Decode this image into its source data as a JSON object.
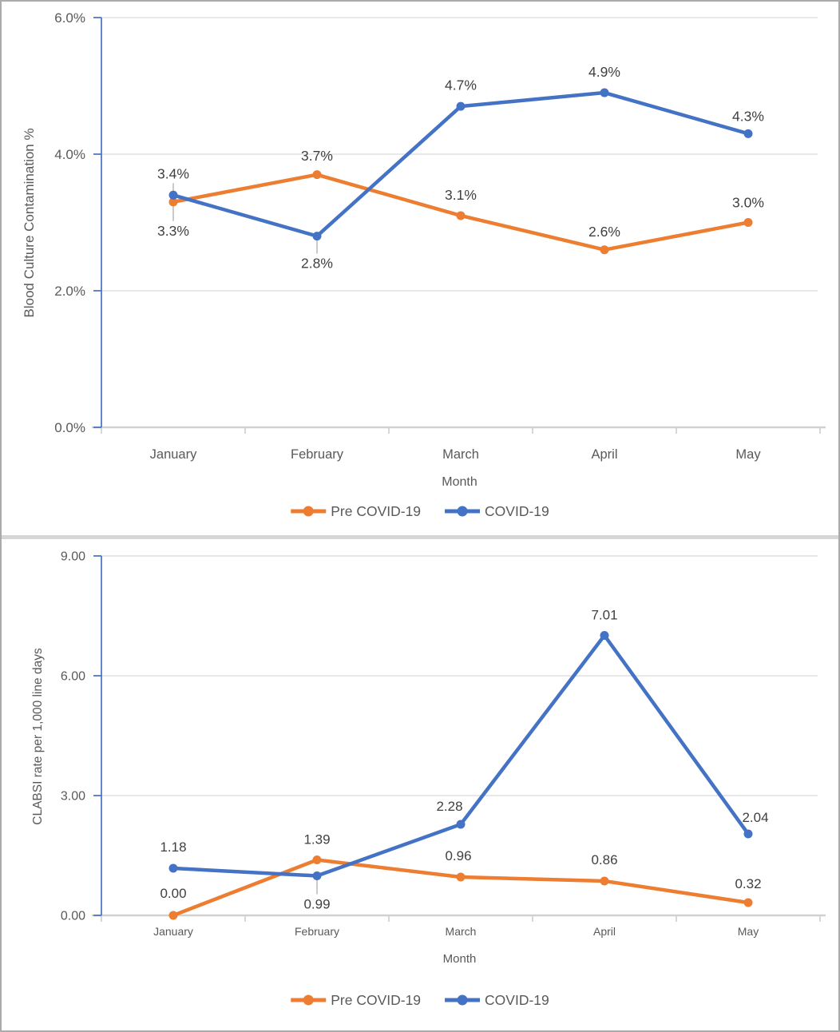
{
  "page": {
    "border_color": "#ABABAB",
    "divider_color": "#D6D6D6",
    "background": "#FFFFFF"
  },
  "colors": {
    "pre_covid_series": "#ED7D31",
    "covid_series": "#4472C4",
    "gridline": "#D9D9D9",
    "x_axis_line": "#D1D1D1",
    "y_axis_line": "#4472C4",
    "data_label_text": "#404040",
    "axis_text": "#595959",
    "leader_line": "#A6A6A6"
  },
  "chart_data": [
    {
      "type": "line",
      "title": "",
      "xlabel": "Month",
      "ylabel": "Blood Culture Contamination %",
      "categories": [
        "January",
        "February",
        "March",
        "April",
        "May"
      ],
      "ylim": [
        0,
        6
      ],
      "grid": true,
      "legend_position": "bottom",
      "yticks": [
        {
          "value": 0,
          "label": "0.0%"
        },
        {
          "value": 2,
          "label": "2.0%"
        },
        {
          "value": 4,
          "label": "4.0%"
        },
        {
          "value": 6,
          "label": "6.0%"
        }
      ],
      "series": [
        {
          "name": "Pre COVID-19",
          "color": "#ED7D31",
          "values": [
            3.3,
            3.7,
            3.1,
            2.6,
            3.0
          ],
          "data_labels": [
            "3.3%",
            "3.7%",
            "3.1%",
            "2.6%",
            "3.0%"
          ],
          "label_offsets": [
            [
              0,
              36
            ],
            [
              0,
              -24
            ],
            [
              0,
              -26
            ],
            [
              0,
              -23
            ],
            [
              0,
              -25
            ]
          ],
          "label_leaders": [
            true,
            false,
            false,
            false,
            false
          ]
        },
        {
          "name": "COVID-19",
          "color": "#4472C4",
          "values": [
            3.4,
            2.8,
            4.7,
            4.9,
            4.3
          ],
          "data_labels": [
            "3.4%",
            "2.8%",
            "4.7%",
            "4.9%",
            "4.3%"
          ],
          "label_offsets": [
            [
              0,
              -27
            ],
            [
              0,
              34
            ],
            [
              0,
              -27
            ],
            [
              0,
              -26
            ],
            [
              0,
              -22
            ]
          ],
          "label_leaders": [
            true,
            true,
            false,
            false,
            false
          ]
        }
      ]
    },
    {
      "type": "line",
      "title": "",
      "xlabel": "Month",
      "ylabel": "CLABSI rate per 1,000 line days",
      "categories": [
        "January",
        "February",
        "March",
        "April",
        "May"
      ],
      "ylim": [
        0,
        9
      ],
      "grid": true,
      "legend_position": "bottom",
      "yticks": [
        {
          "value": 0,
          "label": "0.00"
        },
        {
          "value": 3,
          "label": "3.00"
        },
        {
          "value": 6,
          "label": "6.00"
        },
        {
          "value": 9,
          "label": "9.00"
        }
      ],
      "series": [
        {
          "name": "Pre COVID-19",
          "color": "#ED7D31",
          "values": [
            0.0,
            1.39,
            0.96,
            0.86,
            0.32
          ],
          "data_labels": [
            "0.00",
            "1.39",
            "0.96",
            "0.86",
            "0.32"
          ],
          "label_offsets": [
            [
              0,
              -28
            ],
            [
              0,
              -26
            ],
            [
              -3,
              -27
            ],
            [
              0,
              -27
            ],
            [
              0,
              -24
            ]
          ],
          "label_leaders": [
            false,
            false,
            false,
            false,
            false
          ]
        },
        {
          "name": "COVID-19",
          "color": "#4472C4",
          "values": [
            1.18,
            0.99,
            2.28,
            7.01,
            2.04
          ],
          "data_labels": [
            "1.18",
            "0.99",
            "2.28",
            "7.01",
            "2.04"
          ],
          "label_offsets": [
            [
              0,
              -27
            ],
            [
              0,
              35
            ],
            [
              -14,
              -23
            ],
            [
              0,
              -26
            ],
            [
              9,
              -21
            ]
          ],
          "label_leaders": [
            false,
            true,
            false,
            false,
            false
          ]
        }
      ]
    }
  ]
}
